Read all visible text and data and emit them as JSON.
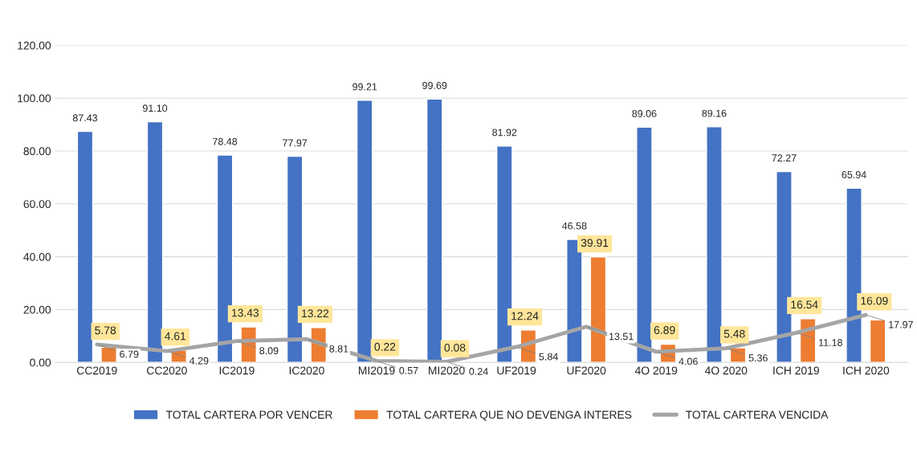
{
  "chart_data": {
    "type": "bar",
    "categories": [
      "CC2019",
      "CC2020",
      "IC2019",
      "IC2020",
      "MI2019",
      "MI2020",
      "UF2019",
      "UF2020",
      "4O 2019",
      "4O 2020",
      "ICH 2019",
      "ICH 2020"
    ],
    "series": [
      {
        "name": "TOTAL CARTERA POR VENCER",
        "color": "#4472c4",
        "values": [
          87.43,
          91.1,
          78.48,
          77.97,
          99.21,
          99.69,
          81.92,
          46.58,
          89.06,
          89.16,
          72.27,
          65.94
        ],
        "value_labels": [
          "87.43",
          "91.10",
          "78.48",
          "77.97",
          "99.21",
          "99.69",
          "81.92",
          "46.58",
          "89.06",
          "89.16",
          "72.27",
          "65.94"
        ]
      },
      {
        "name": "TOTAL CARTERA QUE NO DEVENGA INTERES",
        "color": "#ed7d31",
        "values": [
          5.78,
          4.61,
          13.43,
          13.22,
          0.22,
          0.08,
          12.24,
          39.91,
          6.89,
          5.48,
          16.54,
          16.09
        ],
        "value_labels": [
          "5.78",
          "4.61",
          "13.43",
          "13.22",
          "0.22",
          "0.08",
          "12.24",
          "39.91",
          "6.89",
          "5.48",
          "16.54",
          "16.09"
        ]
      },
      {
        "name": "TOTAL CARTERA VENCIDA",
        "type": "line",
        "color": "#a5a5a5",
        "values": [
          6.79,
          4.29,
          8.09,
          8.81,
          0.57,
          0.24,
          5.84,
          13.51,
          4.06,
          5.36,
          11.18,
          17.97
        ],
        "value_labels": [
          "6.79",
          "4.29",
          "8.09",
          "8.81",
          "0.57",
          "0.24",
          "5.84",
          "13.51",
          "4.06",
          "5.36",
          "11.18",
          "17.97"
        ]
      }
    ],
    "ylim": [
      0,
      120
    ],
    "yticks": [
      {
        "value": 0,
        "label": "0.00"
      },
      {
        "value": 20,
        "label": "20.00"
      },
      {
        "value": 40,
        "label": "40.00"
      },
      {
        "value": 60,
        "label": "60.00"
      },
      {
        "value": 80,
        "label": "80.00"
      },
      {
        "value": 100,
        "label": "100.00"
      },
      {
        "value": 120,
        "label": "120.00"
      }
    ],
    "grid": "y",
    "legend": "bottom"
  }
}
